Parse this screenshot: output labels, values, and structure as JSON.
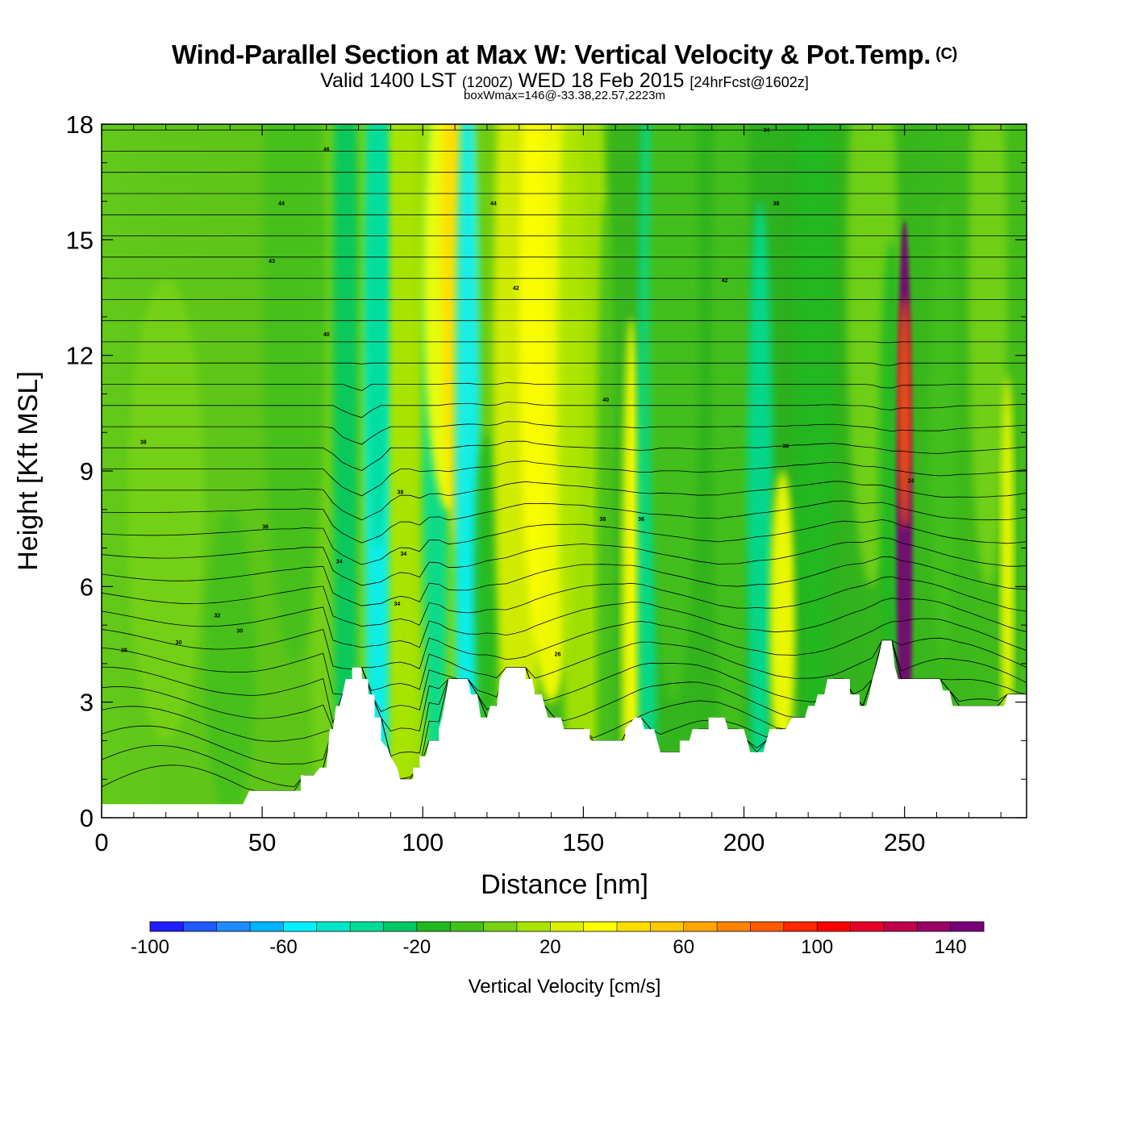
{
  "header": {
    "title": "Wind-Parallel Section at Max W: Vertical Velocity & Pot.Temp.",
    "copyright": "(C)",
    "valid_prefix": "Valid 1400 LST",
    "valid_utc": "(1200Z)",
    "valid_date": "WED 18 Feb 2015",
    "forecast": "[24hrFcst@1602z]",
    "box_info": "boxWmax=146@-33.38,22.57,2223m"
  },
  "chart_data": {
    "type": "heatmap",
    "title": "Wind-Parallel Section at Max W: Vertical Velocity & Pot.Temp.",
    "xlabel": "Distance [nm]",
    "ylabel": "Height [Kft MSL]",
    "xlim": [
      0,
      288
    ],
    "ylim": [
      0,
      18
    ],
    "x_ticks": [
      "0",
      "50",
      "100",
      "150",
      "200",
      "250"
    ],
    "y_ticks": [
      "0",
      "3",
      "6",
      "9",
      "12",
      "15",
      "18"
    ],
    "colorbar": {
      "label": "Vertical Velocity [cm/s]",
      "range": [
        -100,
        150
      ],
      "step": 10,
      "tick_labels": [
        "-100",
        "-60",
        "-20",
        "20",
        "60",
        "100",
        "140"
      ],
      "colors": [
        "#1e1eff",
        "#1e5aff",
        "#1e8cff",
        "#00b4ff",
        "#00f0ff",
        "#00e6c8",
        "#00dc96",
        "#00c864",
        "#20b820",
        "#44c01a",
        "#76d212",
        "#a8e400",
        "#dcf000",
        "#ffff00",
        "#ffdc00",
        "#ffc800",
        "#ffa500",
        "#ff8200",
        "#ff5a00",
        "#ff2800",
        "#ff0000",
        "#e60026",
        "#c0004a",
        "#980068",
        "#780078"
      ]
    },
    "terrain_kft": [
      [
        0,
        0.35
      ],
      [
        44,
        0.35
      ],
      [
        46,
        0.7
      ],
      [
        47,
        0.7
      ],
      [
        48,
        0.7
      ],
      [
        62,
        0.7
      ],
      [
        62,
        1.1
      ],
      [
        66,
        1.1
      ],
      [
        68,
        1.3
      ],
      [
        70,
        1.3
      ],
      [
        71,
        2.3
      ],
      [
        72,
        2.3
      ],
      [
        73,
        2.9
      ],
      [
        74,
        2.9
      ],
      [
        75,
        3.2
      ],
      [
        76,
        3.6
      ],
      [
        78,
        3.6
      ],
      [
        78,
        3.9
      ],
      [
        81,
        3.9
      ],
      [
        81,
        3.6
      ],
      [
        83,
        3.6
      ],
      [
        83,
        3.2
      ],
      [
        85,
        3.2
      ],
      [
        85,
        2.6
      ],
      [
        87,
        2.6
      ],
      [
        87,
        2.0
      ],
      [
        89,
        1.8
      ],
      [
        90,
        1.6
      ],
      [
        92,
        1.3
      ],
      [
        93,
        1.0
      ],
      [
        97,
        1.0
      ],
      [
        97,
        1.3
      ],
      [
        99,
        1.3
      ],
      [
        99,
        1.6
      ],
      [
        101,
        1.6
      ],
      [
        102,
        2.0
      ],
      [
        105,
        2.0
      ],
      [
        105,
        2.3
      ],
      [
        106,
        2.6
      ],
      [
        108,
        3.6
      ],
      [
        114,
        3.6
      ],
      [
        115,
        3.2
      ],
      [
        117,
        3.2
      ],
      [
        118,
        2.6
      ],
      [
        120,
        2.6
      ],
      [
        121,
        2.9
      ],
      [
        123,
        2.9
      ],
      [
        124,
        3.6
      ],
      [
        126,
        3.9
      ],
      [
        132,
        3.9
      ],
      [
        132,
        3.6
      ],
      [
        134,
        3.6
      ],
      [
        135,
        3.2
      ],
      [
        137,
        3.2
      ],
      [
        139,
        2.6
      ],
      [
        143,
        2.6
      ],
      [
        144,
        2.3
      ],
      [
        152,
        2.3
      ],
      [
        152,
        2.0
      ],
      [
        163,
        2.0
      ],
      [
        163,
        2.3
      ],
      [
        166,
        2.6
      ],
      [
        168,
        2.6
      ],
      [
        169,
        2.3
      ],
      [
        172,
        2.3
      ],
      [
        173,
        2.0
      ],
      [
        174,
        1.7
      ],
      [
        180,
        1.7
      ],
      [
        180,
        2.0
      ],
      [
        183,
        2.0
      ],
      [
        184,
        2.3
      ],
      [
        189,
        2.3
      ],
      [
        189,
        2.6
      ],
      [
        194,
        2.6
      ],
      [
        195,
        2.3
      ],
      [
        200,
        2.3
      ],
      [
        201,
        2.0
      ],
      [
        202,
        1.7
      ],
      [
        206,
        1.7
      ],
      [
        207,
        2.0
      ],
      [
        208,
        2.3
      ],
      [
        213,
        2.3
      ],
      [
        215,
        2.6
      ],
      [
        219,
        2.6
      ],
      [
        220,
        2.9
      ],
      [
        222,
        2.9
      ],
      [
        223,
        3.2
      ],
      [
        225,
        3.2
      ],
      [
        226,
        3.6
      ],
      [
        233,
        3.6
      ],
      [
        233,
        3.2
      ],
      [
        236,
        3.2
      ],
      [
        236,
        2.9
      ],
      [
        238,
        2.9
      ],
      [
        239,
        3.2
      ],
      [
        240,
        3.6
      ],
      [
        241,
        3.9
      ],
      [
        242,
        4.2
      ],
      [
        243,
        4.6
      ],
      [
        246,
        4.6
      ],
      [
        247,
        3.9
      ],
      [
        248,
        3.6
      ],
      [
        250,
        3.6
      ],
      [
        251,
        3.6
      ],
      [
        261,
        3.6
      ],
      [
        262,
        3.3
      ],
      [
        264,
        3.3
      ],
      [
        265,
        2.9
      ],
      [
        270,
        2.9
      ],
      [
        281,
        2.9
      ],
      [
        282,
        3.2
      ],
      [
        288,
        3.2
      ]
    ],
    "contour_labels": [
      "46",
      "44",
      "44",
      "43",
      "42",
      "42",
      "40",
      "40",
      "38",
      "38",
      "38",
      "36",
      "36",
      "36",
      "34",
      "34",
      "34",
      "32",
      "30",
      "30",
      "28",
      "26",
      "24",
      "34",
      "38"
    ]
  }
}
